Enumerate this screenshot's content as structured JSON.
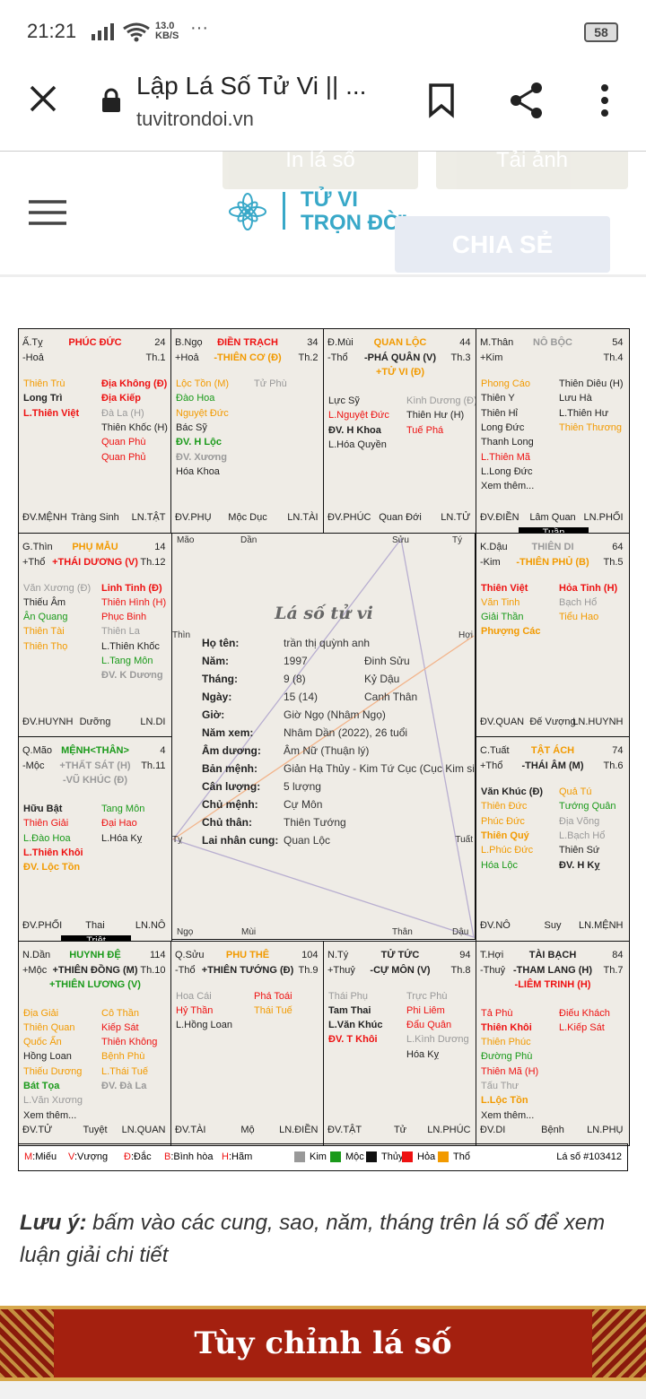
{
  "status": {
    "time": "21:21",
    "speed": "13.0",
    "speed_unit": "KB/S",
    "battery": "58"
  },
  "browser": {
    "title": "Lập Lá Số Tử Vi || ...",
    "url": "tuvitrondoi.vn"
  },
  "site": {
    "print": "In lá số",
    "download": "Tải ảnh",
    "logo_top": "TỬ VI",
    "logo_bottom": "TRỌN ĐỜI",
    "share": "CHIA SẺ"
  },
  "cells": [
    {
      "branch": "Ấ.Tỵ",
      "palace": "PHÚC ĐỨC",
      "palace_color": "#e11",
      "age": "24",
      "element": "-Hoả",
      "main": [],
      "th": "Th.1",
      "left": [
        [
          "Thiên Trù",
          "#f29a00",
          false
        ],
        [
          "Long Trì",
          "#222",
          true
        ],
        [
          "L.Thiên Việt",
          "#e11",
          true
        ]
      ],
      "right": [
        [
          "Địa Không (Đ)",
          "#e11",
          true
        ],
        [
          "Địa Kiếp",
          "#e11",
          true
        ],
        [
          "Đà La (H)",
          "#999",
          false
        ],
        [
          "Thiên Khốc (H)",
          "#222",
          false
        ],
        [
          "Quan Phù",
          "#e11",
          false
        ],
        [
          "Quan Phủ",
          "#e11",
          false
        ]
      ],
      "foot": [
        "ĐV.MỆNH",
        "Tràng Sinh",
        "LN.TẬT"
      ]
    },
    {
      "branch": "B.Ngọ",
      "palace": "ĐIỀN TRẠCH",
      "palace_color": "#e11",
      "age": "34",
      "element": "+Hoả",
      "main": [
        [
          "-THIÊN CƠ (Đ)",
          "#f29a00"
        ]
      ],
      "th": "Th.2",
      "left": [
        [
          "Lộc Tồn (M)",
          "#f29a00",
          false
        ],
        [
          "Đào Hoa",
          "#1a9a1a",
          false
        ],
        [
          "Nguyệt Đức",
          "#f29a00",
          false
        ],
        [
          "Bác Sỹ",
          "#222",
          false
        ],
        [
          "ĐV. H Lộc",
          "#1a9a1a",
          true
        ],
        [
          "ĐV. Xương",
          "#999",
          true
        ],
        [
          "Hóa Khoa",
          "#222",
          false
        ]
      ],
      "right": [
        [
          "Tử Phù",
          "#999",
          false
        ]
      ],
      "foot": [
        "ĐV.PHỤ",
        "Mộc Dục",
        "LN.TÀI"
      ]
    },
    {
      "branch": "Đ.Mùi",
      "palace": "QUAN LỘC",
      "palace_color": "#f29a00",
      "age": "44",
      "element": "-Thổ",
      "main": [
        [
          "-PHÁ QUÂN (V)",
          "#222"
        ],
        [
          "+TỬ VI (Đ)",
          "#f29a00"
        ]
      ],
      "th": "Th.3",
      "left": [
        [
          "Lực Sỹ",
          "#222",
          false
        ],
        [
          "L.Nguyệt Đức",
          "#e11",
          false
        ],
        [
          "ĐV. H Khoa",
          "#222",
          true
        ],
        [
          "L.Hóa Quyền",
          "#222",
          false
        ]
      ],
      "right": [
        [
          "Kình Dương (Đ)",
          "#999",
          false
        ],
        [
          "Thiên Hư (H)",
          "#222",
          false
        ],
        [
          "Tuế Phá",
          "#e11",
          false
        ]
      ],
      "foot": [
        "ĐV.PHÚC",
        "Quan Đới",
        "LN.TỬ"
      ]
    },
    {
      "branch": "M.Thân",
      "palace": "NÔ BỘC",
      "palace_color": "#999",
      "age": "54",
      "element": "+Kim",
      "main": [],
      "th": "Th.4",
      "left": [
        [
          "Phong Cáo",
          "#f29a00",
          false
        ],
        [
          "Thiên Y",
          "#222",
          false
        ],
        [
          "Thiên Hỉ",
          "#222",
          false
        ],
        [
          "Long Đức",
          "#222",
          false
        ],
        [
          "Thanh Long",
          "#222",
          false
        ],
        [
          "L.Thiên Mã",
          "#e11",
          false
        ],
        [
          "L.Long Đức",
          "#222",
          false
        ],
        [
          "Xem thêm...",
          "#222",
          false
        ]
      ],
      "right": [
        [
          "Thiên Diêu (H)",
          "#222",
          false
        ],
        [
          "Lưu Hà",
          "#222",
          false
        ],
        [
          "L.Thiên Hư",
          "#222",
          false
        ],
        [
          "Thiên Thương",
          "#f29a00",
          false
        ]
      ],
      "foot": [
        "ĐV.ĐIỀN",
        "Lâm Quan",
        "LN.PHỐI"
      ],
      "tag": "Tuần"
    },
    {
      "branch": "G.Thìn",
      "palace": "PHỤ MẪU",
      "palace_color": "#f29a00",
      "age": "14",
      "element": "+Thổ",
      "main": [
        [
          "+THÁI DƯƠNG (V)",
          "#e11"
        ]
      ],
      "th": "Th.12",
      "left": [
        [
          "Văn Xương (Đ)",
          "#999",
          false
        ],
        [
          "Thiếu Âm",
          "#222",
          false
        ],
        [
          "Ân Quang",
          "#1a9a1a",
          false
        ],
        [
          "Thiên Tài",
          "#f29a00",
          false
        ],
        [
          "Thiên Thọ",
          "#f29a00",
          false
        ]
      ],
      "right": [
        [
          "Linh Tinh (Đ)",
          "#e11",
          true
        ],
        [
          "Thiên Hình (H)",
          "#e11",
          false
        ],
        [
          "Phục Binh",
          "#e11",
          false
        ],
        [
          "Thiên La",
          "#999",
          false
        ],
        [
          "L.Thiên Khốc",
          "#222",
          false
        ],
        [
          "L.Tang Môn",
          "#1a9a1a",
          false
        ],
        [
          "ĐV. K Dương",
          "#999",
          true
        ]
      ],
      "foot": [
        "ĐV.HUYNH",
        "Dưỡng",
        "LN.DI"
      ]
    },
    {
      "branch": "K.Dậu",
      "palace": "THIÊN DI",
      "palace_color": "#999",
      "age": "64",
      "element": "-Kim",
      "main": [
        [
          "-THIÊN PHỦ (B)",
          "#f29a00"
        ]
      ],
      "th": "Th.5",
      "left": [
        [
          "Thiên Việt",
          "#e11",
          true
        ],
        [
          "Văn Tinh",
          "#f29a00",
          false
        ],
        [
          "Giải Thần",
          "#1a9a1a",
          false
        ],
        [
          "Phượng Các",
          "#f29a00",
          true
        ]
      ],
      "right": [
        [
          "Hỏa Tinh (H)",
          "#e11",
          true
        ],
        [
          "Bạch Hổ",
          "#999",
          false
        ],
        [
          "Tiểu Hao",
          "#f29a00",
          false
        ]
      ],
      "foot": [
        "ĐV.QUAN",
        "Đế Vượng",
        "LN.HUYNH"
      ]
    },
    {
      "branch": "Q.Mão",
      "palace": "MỆNH<THÂN>",
      "palace_color": "#1a9a1a",
      "age": "4",
      "element": "-Mộc",
      "main": [
        [
          "+THẤT SÁT (H)",
          "#999"
        ],
        [
          "-VŨ KHÚC (Đ)",
          "#999"
        ]
      ],
      "th": "Th.11",
      "left": [
        [
          "Hữu Bật",
          "#222",
          true
        ],
        [
          "Thiên Giải",
          "#e11",
          false
        ],
        [
          "L.Đào Hoa",
          "#1a9a1a",
          false
        ],
        [
          "L.Thiên Khôi",
          "#e11",
          true
        ],
        [
          "ĐV. Lộc Tồn",
          "#f29a00",
          true
        ]
      ],
      "right": [
        [
          "Tang Môn",
          "#1a9a1a",
          false
        ],
        [
          "Đại Hao",
          "#e11",
          false
        ],
        [
          "L.Hóa Kỵ",
          "#222",
          false
        ]
      ],
      "foot": [
        "ĐV.PHỐI",
        "Thai",
        "LN.NÔ"
      ],
      "tag": "Triệt"
    },
    {
      "branch": "C.Tuất",
      "palace": "TẬT ÁCH",
      "palace_color": "#f29a00",
      "age": "74",
      "element": "+Thổ",
      "main": [
        [
          "-THÁI ÂM (M)",
          "#222"
        ]
      ],
      "th": "Th.6",
      "left": [
        [
          "Văn Khúc (Đ)",
          "#222",
          true
        ],
        [
          "Thiên Đức",
          "#f29a00",
          false
        ],
        [
          "Phúc Đức",
          "#f29a00",
          false
        ],
        [
          "Thiên Quý",
          "#f29a00",
          true
        ],
        [
          "L.Phúc Đức",
          "#f29a00",
          false
        ],
        [
          "Hóa Lộc",
          "#1a9a1a",
          false
        ]
      ],
      "right": [
        [
          "Quả Tú",
          "#f29a00",
          false
        ],
        [
          "Tướng Quân",
          "#1a9a1a",
          false
        ],
        [
          "Địa Võng",
          "#999",
          false
        ],
        [
          "L.Bạch Hổ",
          "#999",
          false
        ],
        [
          "Thiên Sứ",
          "#222",
          false
        ],
        [
          "ĐV. H Kỵ",
          "#222",
          true
        ]
      ],
      "foot": [
        "ĐV.NÔ",
        "Suy",
        "LN.MỆNH"
      ]
    },
    {
      "branch": "N.Dần",
      "palace": "HUYNH ĐỆ",
      "palace_color": "#1a9a1a",
      "age": "114",
      "element": "+Mộc",
      "main": [
        [
          "+THIÊN ĐỒNG (M)",
          "#222"
        ],
        [
          "+THIÊN LƯƠNG (V)",
          "#1a9a1a"
        ]
      ],
      "th": "Th.10",
      "left": [
        [
          "Địa Giải",
          "#f29a00",
          false
        ],
        [
          "Thiên Quan",
          "#f29a00",
          false
        ],
        [
          "Quốc Ấn",
          "#f29a00",
          false
        ],
        [
          "Hồng Loan",
          "#222",
          false
        ],
        [
          "Thiếu Dương",
          "#f29a00",
          false
        ],
        [
          "Bát Tọa",
          "#1a9a1a",
          true
        ],
        [
          "L.Văn Xương",
          "#999",
          false
        ],
        [
          "Xem thêm...",
          "#222",
          false
        ]
      ],
      "right": [
        [
          "Cô Thần",
          "#f29a00",
          false
        ],
        [
          "Kiếp Sát",
          "#e11",
          false
        ],
        [
          "Thiên Không",
          "#e11",
          false
        ],
        [
          "Bệnh Phù",
          "#f29a00",
          false
        ],
        [
          "L.Thái Tuế",
          "#f29a00",
          false
        ],
        [
          "ĐV. Đà La",
          "#999",
          true
        ]
      ],
      "foot": [
        "ĐV.TỬ",
        "Tuyệt",
        "LN.QUAN"
      ]
    },
    {
      "branch": "Q.Sửu",
      "palace": "PHU THÊ",
      "palace_color": "#f29a00",
      "age": "104",
      "element": "-Thổ",
      "main": [
        [
          "+THIÊN TƯỚNG (Đ)",
          "#222"
        ]
      ],
      "th": "Th.9",
      "left": [
        [
          "Hoa Cái",
          "#999",
          false
        ],
        [
          "Hỷ Thần",
          "#e11",
          false
        ],
        [
          "L.Hồng Loan",
          "#222",
          false
        ]
      ],
      "right": [
        [
          "Phá Toái",
          "#e11",
          false
        ],
        [
          "Thái Tuế",
          "#f29a00",
          false
        ]
      ],
      "foot": [
        "ĐV.TÀI",
        "Mộ",
        "LN.ĐIỀN"
      ]
    },
    {
      "branch": "N.Tý",
      "palace": "TỬ TỨC",
      "palace_color": "#222",
      "age": "94",
      "element": "+Thuỷ",
      "main": [
        [
          "-CỰ MÔN (V)",
          "#222"
        ]
      ],
      "th": "Th.8",
      "left": [
        [
          "Thái Phụ",
          "#999",
          false
        ],
        [
          "Tam Thai",
          "#222",
          true
        ],
        [
          "L.Văn Khúc",
          "#222",
          true
        ],
        [
          "ĐV. T Khôi",
          "#e11",
          true
        ]
      ],
      "right": [
        [
          "Trực Phù",
          "#999",
          false
        ],
        [
          "Phi Liêm",
          "#e11",
          false
        ],
        [
          "Đẩu Quân",
          "#e11",
          false
        ],
        [
          "L.Kình Dương",
          "#999",
          false
        ],
        [
          "Hóa Kỵ",
          "#222",
          false
        ]
      ],
      "foot": [
        "ĐV.TẬT",
        "Tử",
        "LN.PHÚC"
      ]
    },
    {
      "branch": "T.Hợi",
      "palace": "TÀI BẠCH",
      "palace_color": "#222",
      "age": "84",
      "element": "-Thuỷ",
      "main": [
        [
          "-THAM LANG (H)",
          "#222"
        ],
        [
          "-LIÊM TRINH (H)",
          "#e11"
        ]
      ],
      "th": "Th.7",
      "left": [
        [
          "Tả Phù",
          "#e11",
          false
        ],
        [
          "Thiên Khôi",
          "#e11",
          true
        ],
        [
          "Thiên Phúc",
          "#f29a00",
          false
        ],
        [
          "Đường Phù",
          "#1a9a1a",
          false
        ],
        [
          "Thiên Mã (H)",
          "#e11",
          false
        ],
        [
          "Tấu Thư",
          "#999",
          false
        ],
        [
          "L.Lộc Tồn",
          "#f29a00",
          true
        ],
        [
          "Xem thêm...",
          "#222",
          false
        ]
      ],
      "right": [
        [
          "Điếu Khách",
          "#e11",
          false
        ],
        [
          "L.Kiếp Sát",
          "#e11",
          false
        ]
      ],
      "foot": [
        "ĐV.DI",
        "Bệnh",
        "LN.PHỤ"
      ]
    }
  ],
  "center": {
    "title": "Lá số tử vi",
    "rows": [
      [
        "Họ tên:",
        "trần thị quỳnh anh"
      ],
      [
        "Năm:",
        "1997",
        "Đinh Sửu"
      ],
      [
        "Tháng:",
        "9 (8)",
        "Kỷ Dậu"
      ],
      [
        "Ngày:",
        "15 (14)",
        "Canh Thân"
      ],
      [
        "Giờ:",
        "Giờ Ngọ (Nhâm Ngọ)"
      ],
      [
        "Năm xem:",
        "Nhâm Dần (2022), 26 tuổi"
      ],
      [
        "Âm dương:",
        "Âm Nữ (Thuận lý)"
      ],
      [
        "Bản mệnh:",
        "Giản Hạ Thủy - Kim Tứ Cục (Cục Kim sinh Mệnh Thủy)"
      ],
      [
        "Cân lượng:",
        "5 lượng"
      ],
      [
        "Chủ mệnh:",
        "Cự Môn"
      ],
      [
        "Chủ thân:",
        "Thiên Tướng"
      ],
      [
        "Lai nhân cung:",
        "Quan Lộc"
      ]
    ],
    "labels_top": [
      "Mão",
      "Dần",
      "Sửu",
      "Tý"
    ],
    "labels_left": [
      "Thìn",
      "Tỵ"
    ],
    "labels_right": [
      "Hợi",
      "Tuất"
    ],
    "labels_bottom": [
      "Ngọ",
      "Mùi",
      "Thân",
      "Dậu"
    ]
  },
  "legend": {
    "marks": [
      [
        "M",
        ":Miếu"
      ],
      [
        "V",
        ":Vượng"
      ],
      [
        "Đ",
        ":Đắc"
      ],
      [
        "B",
        ":Bình hòa"
      ],
      [
        "H",
        ":Hãm"
      ]
    ],
    "elements": [
      [
        "Kim",
        "#999"
      ],
      [
        "Mộc",
        "#1a9a1a"
      ],
      [
        "Thủy",
        "#111"
      ],
      [
        "Hỏa",
        "#e11"
      ],
      [
        "Thổ",
        "#f29a00"
      ]
    ],
    "id": "Lá số #103412"
  },
  "note": {
    "bold": "Lưu ý:",
    "text": " bấm vào các cung, sao, năm, tháng trên lá số để xem luận giải chi tiết"
  },
  "banner": "Tùy chỉnh lá số"
}
